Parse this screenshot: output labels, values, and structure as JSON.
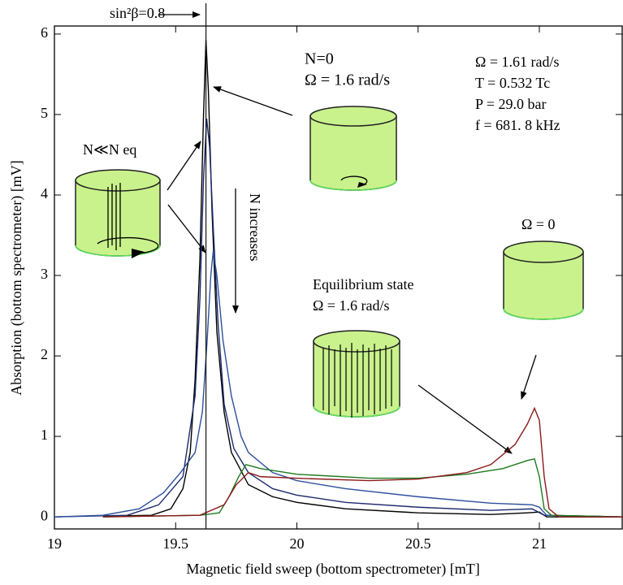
{
  "chart_data": {
    "type": "line",
    "xlabel": "Magnetic field sweep (bottom spectrometer)   [mT]",
    "ylabel": "Absorption (bottom spectrometer)  [mV]",
    "xlim": [
      19,
      21.345
    ],
    "ylim": [
      -0.15,
      6.1
    ],
    "xticks": [
      19,
      19.5,
      20,
      20.5,
      21
    ],
    "yticks": [
      0,
      1,
      2,
      3,
      4,
      5,
      6
    ],
    "marker_line": {
      "x": 19.625,
      "label": "sin²β=0.8"
    },
    "annotations": {
      "n0": "N=0",
      "n0_omega": "Ω = 1.6 rad/s",
      "omega": "Ω = 1.61 rad/s",
      "temp": "T = 0.532 Tc",
      "pressure": "P = 29.0 bar",
      "freq": "f = 681. 8 kHz",
      "nlow": "N≪N eq",
      "nincr": "N increases",
      "omega0": "Ω = 0",
      "eq": "Equilibrium state",
      "eq_omega": "Ω = 1.6 rad/s"
    },
    "series": [
      {
        "color": "#000000",
        "x": [
          19.2,
          19.4,
          19.48,
          19.53,
          19.56,
          19.58,
          19.6,
          19.615,
          19.625,
          19.635,
          19.65,
          19.67,
          19.7,
          19.73,
          19.8,
          19.9,
          20.0,
          20.2,
          20.5,
          20.8,
          20.95,
          21.0,
          21.03,
          21.345
        ],
        "values": [
          0.01,
          0.02,
          0.1,
          0.35,
          0.8,
          1.7,
          3.2,
          5.0,
          5.93,
          5.3,
          3.8,
          2.3,
          1.3,
          0.8,
          0.4,
          0.25,
          0.18,
          0.1,
          0.05,
          0.03,
          0.05,
          0.06,
          0.0,
          0.0
        ]
      },
      {
        "color": "#1c2a6e",
        "x": [
          19.0,
          19.3,
          19.43,
          19.53,
          19.58,
          19.6,
          19.615,
          19.628,
          19.64,
          19.655,
          19.675,
          19.7,
          19.74,
          19.8,
          19.9,
          20.0,
          20.2,
          20.5,
          20.8,
          20.97,
          21.02,
          21.345
        ],
        "values": [
          0.0,
          0.02,
          0.15,
          0.5,
          1.5,
          2.7,
          4.2,
          4.95,
          4.6,
          3.6,
          2.4,
          1.4,
          0.85,
          0.55,
          0.35,
          0.27,
          0.18,
          0.12,
          0.08,
          0.1,
          0.02,
          0.0
        ]
      },
      {
        "color": "#2c4f9c",
        "x": [
          19.0,
          19.2,
          19.35,
          19.45,
          19.52,
          19.58,
          19.61,
          19.63,
          19.645,
          19.655,
          19.67,
          19.695,
          19.73,
          19.77,
          19.8,
          19.9,
          20.0,
          20.2,
          20.5,
          20.8,
          20.97,
          21.0,
          21.03,
          21.345
        ],
        "values": [
          0.0,
          0.02,
          0.1,
          0.3,
          0.55,
          0.8,
          1.3,
          2.2,
          3.0,
          3.3,
          3.0,
          2.2,
          1.5,
          1.0,
          0.8,
          0.55,
          0.45,
          0.35,
          0.25,
          0.17,
          0.15,
          0.12,
          0.02,
          0.0
        ]
      },
      {
        "color": "#1d7a1d",
        "x": [
          19.2,
          19.6,
          19.68,
          19.72,
          19.76,
          19.79,
          19.85,
          20.0,
          20.3,
          20.5,
          20.7,
          20.85,
          20.95,
          20.98,
          21.0,
          21.02,
          21.05,
          21.345
        ],
        "values": [
          0.0,
          0.02,
          0.05,
          0.25,
          0.5,
          0.65,
          0.6,
          0.53,
          0.48,
          0.48,
          0.53,
          0.6,
          0.7,
          0.72,
          0.5,
          0.1,
          0.02,
          0.0
        ]
      },
      {
        "color": "#8b1a1a",
        "x": [
          19.2,
          19.6,
          19.7,
          19.75,
          19.8,
          19.85,
          20.0,
          20.3,
          20.5,
          20.7,
          20.8,
          20.9,
          20.95,
          20.98,
          21.0,
          21.02,
          21.04,
          21.08,
          21.345
        ],
        "values": [
          0.0,
          0.02,
          0.15,
          0.4,
          0.55,
          0.5,
          0.48,
          0.45,
          0.47,
          0.55,
          0.65,
          0.9,
          1.15,
          1.35,
          1.2,
          0.5,
          0.1,
          0.0,
          0.0
        ]
      }
    ]
  }
}
